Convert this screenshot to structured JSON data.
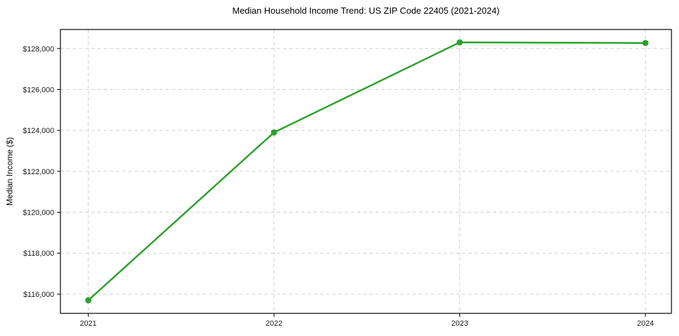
{
  "chart_data": {
    "type": "line",
    "title": "Median Household Income Trend: US ZIP Code 22405 (2021-2024)",
    "xlabel": "",
    "ylabel": "Median Income ($)",
    "x": [
      2021,
      2022,
      2023,
      2024
    ],
    "x_tick_labels": [
      "2021",
      "2022",
      "2023",
      "2024"
    ],
    "series": [
      {
        "name": "Median Household Income",
        "values": [
          115700,
          123900,
          128300,
          128270
        ]
      }
    ],
    "y_ticks": [
      116000,
      118000,
      120000,
      122000,
      124000,
      126000,
      128000
    ],
    "y_tick_labels": [
      "$116,000",
      "$118,000",
      "$120,000",
      "$122,000",
      "$124,000",
      "$126,000",
      "$128,000"
    ],
    "xlim": [
      2020.85,
      2024.14
    ],
    "ylim": [
      115060,
      128930
    ],
    "grid": true,
    "grid_style": "dashed",
    "legend": "none",
    "colors": {
      "line": "#2ca02c",
      "marker": "#2ca02c",
      "grid": "#cfcfcf",
      "spine": "#000000",
      "tick_label": "#1a1a1a",
      "background": "#ffffff"
    }
  }
}
